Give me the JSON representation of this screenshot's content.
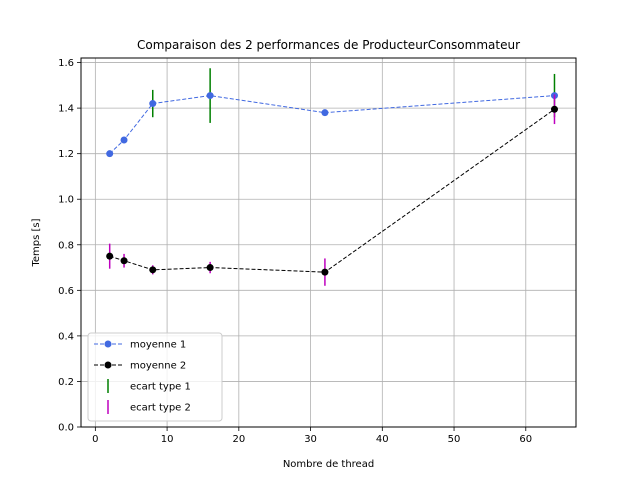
{
  "chart_data": {
    "type": "line",
    "title": "Comparaison des 2 performances de ProducteurConsommateur",
    "xlabel": "Nombre de thread",
    "ylabel": "Temps [s]",
    "xlim": [
      -2,
      67
    ],
    "ylim": [
      0.0,
      1.62
    ],
    "xticks": [
      0,
      10,
      20,
      30,
      40,
      50,
      60
    ],
    "yticks": [
      0.0,
      0.2,
      0.4,
      0.6,
      0.8,
      1.0,
      1.2,
      1.4,
      1.6
    ],
    "grid": true,
    "legend_position": "lower-left",
    "x": [
      2,
      4,
      8,
      16,
      32,
      64
    ],
    "series": [
      {
        "name": "moyenne 1",
        "values": [
          1.2,
          1.26,
          1.42,
          1.455,
          1.38,
          1.455
        ],
        "color": "#4169e1",
        "linestyle": "dashed",
        "marker": "circle",
        "error_name": "ecart type 1",
        "error_color": "#008000",
        "errors": [
          0.0,
          0.0,
          0.06,
          0.12,
          0.0,
          0.095
        ]
      },
      {
        "name": "moyenne 2",
        "values": [
          0.75,
          0.73,
          0.69,
          0.7,
          0.68,
          1.395
        ],
        "color": "#000000",
        "linestyle": "dashed",
        "marker": "circle",
        "error_name": "ecart type 2",
        "error_color": "#bf00bf",
        "errors": [
          0.055,
          0.03,
          0.02,
          0.025,
          0.06,
          0.065
        ]
      }
    ]
  }
}
